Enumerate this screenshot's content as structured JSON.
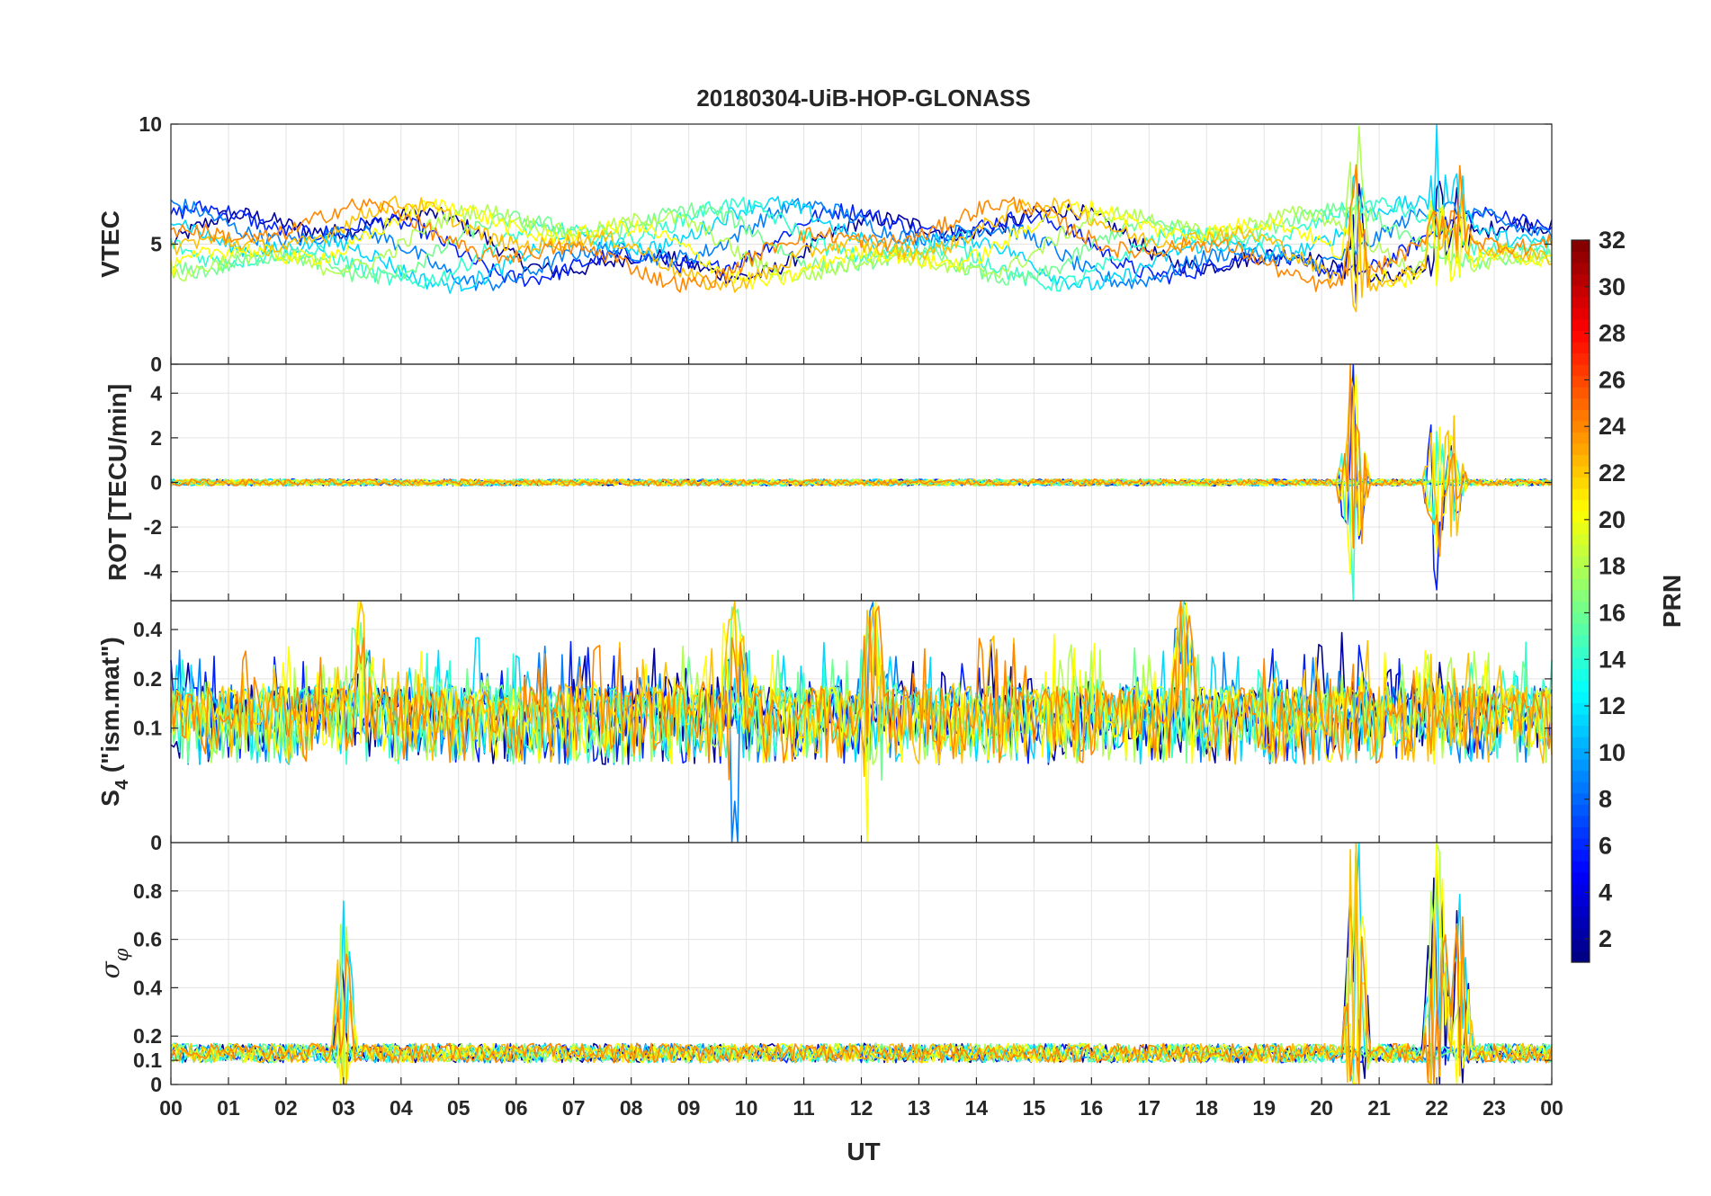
{
  "chart_data": {
    "type": "line",
    "title": "20180304-UiB-HOP-GLONASS",
    "xlabel": "UT",
    "x_tick_labels": [
      "00",
      "01",
      "02",
      "03",
      "04",
      "05",
      "06",
      "07",
      "08",
      "09",
      "10",
      "11",
      "12",
      "13",
      "14",
      "15",
      "16",
      "17",
      "18",
      "19",
      "20",
      "21",
      "22",
      "23",
      "00"
    ],
    "xlim": [
      0,
      24
    ],
    "panels": [
      {
        "id": "vtec",
        "ylabel": "VTEC",
        "ylim": [
          0,
          10
        ],
        "y_ticks": [
          {
            "v": 0,
            "label": "0"
          },
          {
            "v": 5,
            "label": "5"
          },
          {
            "v": 10,
            "label": "10"
          }
        ],
        "baseline": 5,
        "noise": 0.35,
        "events": [
          {
            "t": 20.6,
            "amp": 3.5
          },
          {
            "t": 22.0,
            "amp": 3.0
          },
          {
            "t": 22.4,
            "amp": 2.0
          }
        ]
      },
      {
        "id": "rot",
        "ylabel": "ROT [TECU/min]",
        "ylim": [
          -5.3,
          5.3
        ],
        "y_ticks": [
          {
            "v": -4,
            "label": "-4"
          },
          {
            "v": -2,
            "label": "-2"
          },
          {
            "v": 0,
            "label": "0"
          },
          {
            "v": 2,
            "label": "2"
          },
          {
            "v": 4,
            "label": "4"
          }
        ],
        "baseline": 0,
        "noise": 0.15,
        "events": [
          {
            "t": 20.5,
            "amp": 4.5
          },
          {
            "t": 20.6,
            "amp": 5.0
          },
          {
            "t": 22.0,
            "amp": 5.0
          },
          {
            "t": 22.3,
            "amp": 3.0
          }
        ]
      },
      {
        "id": "s4",
        "ylabel_main": "S",
        "ylabel_sub": "4",
        "ylabel_tail": " (\"ism.mat\")",
        "ylim": [
          0.02,
          0.6
        ],
        "y_scale": "log",
        "y_ticks": [
          {
            "v": 0.1,
            "label": "0.1"
          },
          {
            "v": 0.2,
            "label": "0.2"
          },
          {
            "v": 0.4,
            "label": "0.4"
          }
        ],
        "baseline": 0.12,
        "noise": 0.06,
        "events": [
          {
            "t": 12.2,
            "amp": 0.45
          },
          {
            "t": 17.6,
            "amp": 0.4
          },
          {
            "t": 9.8,
            "amp": 0.35
          },
          {
            "t": 3.3,
            "amp": 0.3
          }
        ]
      },
      {
        "id": "sigma",
        "ylabel_symbol": "σ",
        "ylabel_sub": "φ",
        "ylim": [
          0,
          1
        ],
        "y_ticks": [
          {
            "v": 0,
            "label": "0"
          },
          {
            "v": 0.1,
            "label": "0.1"
          },
          {
            "v": 0.2,
            "label": "0.2"
          },
          {
            "v": 0.4,
            "label": "0.4"
          },
          {
            "v": 0.6,
            "label": "0.6"
          },
          {
            "v": 0.8,
            "label": "0.8"
          }
        ],
        "top_tick_label": "0",
        "baseline": 0.13,
        "noise": 0.04,
        "events": [
          {
            "t": 3.0,
            "amp": 0.45
          },
          {
            "t": 20.6,
            "amp": 0.9
          },
          {
            "t": 22.0,
            "amp": 0.9
          },
          {
            "t": 22.4,
            "amp": 0.5
          }
        ]
      }
    ],
    "series": [
      {
        "name": "PRN 2",
        "prn": 2,
        "color": "#00009c"
      },
      {
        "name": "PRN 5",
        "prn": 5,
        "color": "#0020ff"
      },
      {
        "name": "PRN 8",
        "prn": 8,
        "color": "#0080ff"
      },
      {
        "name": "PRN 11",
        "prn": 11,
        "color": "#00d8ff"
      },
      {
        "name": "PRN 13",
        "prn": 13,
        "color": "#30ffd0"
      },
      {
        "name": "PRN 16",
        "prn": 16,
        "color": "#70ff90"
      },
      {
        "name": "PRN 18",
        "prn": 18,
        "color": "#b0ff50"
      },
      {
        "name": "PRN 20",
        "prn": 20,
        "color": "#ffff00"
      },
      {
        "name": "PRN 22",
        "prn": 22,
        "color": "#ffc000"
      },
      {
        "name": "PRN 24",
        "prn": 24,
        "color": "#ff8800"
      }
    ],
    "colorbar": {
      "label": "PRN",
      "range": [
        1,
        32
      ],
      "tick_values": [
        2,
        4,
        6,
        8,
        10,
        12,
        14,
        16,
        18,
        20,
        22,
        24,
        26,
        28,
        30,
        32
      ],
      "tick_labels": [
        "2",
        "4",
        "6",
        "8",
        "10",
        "12",
        "14",
        "16",
        "18",
        "20",
        "22",
        "24",
        "26",
        "28",
        "30",
        "32"
      ],
      "colormap": "jet"
    }
  }
}
